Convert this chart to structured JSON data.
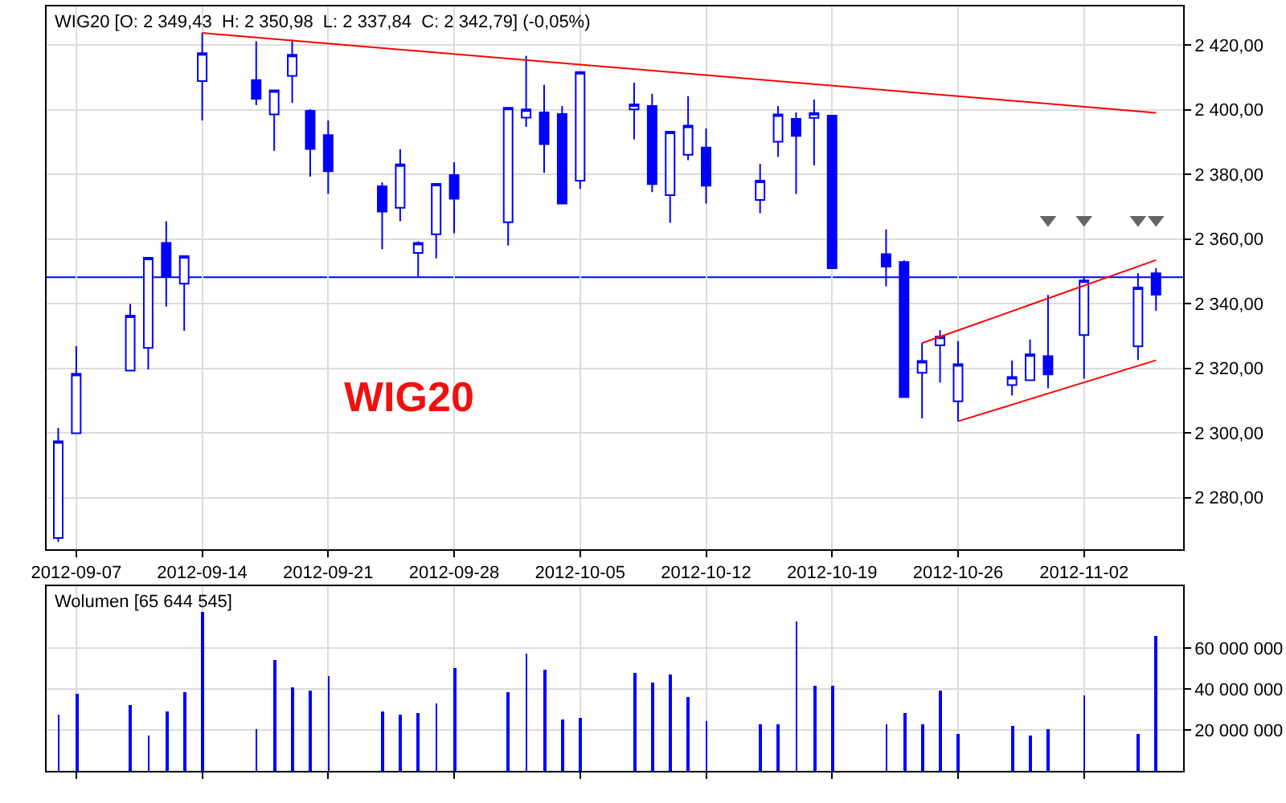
{
  "chart_data": [
    {
      "type": "candlestick",
      "title": "WIG20 [O: 2 349,43  H: 2 350,98  L: 2 337,84  C: 2 342,79] (-0,05%)",
      "color": "#0000ff",
      "x": [
        "2012-09-06",
        "2012-09-07",
        "2012-09-10",
        "2012-09-11",
        "2012-09-12",
        "2012-09-13",
        "2012-09-14",
        "2012-09-17",
        "2012-09-18",
        "2012-09-19",
        "2012-09-20",
        "2012-09-21",
        "2012-09-24",
        "2012-09-25",
        "2012-09-26",
        "2012-09-27",
        "2012-09-28",
        "2012-10-01",
        "2012-10-02",
        "2012-10-03",
        "2012-10-04",
        "2012-10-05",
        "2012-10-08",
        "2012-10-09",
        "2012-10-10",
        "2012-10-11",
        "2012-10-12",
        "2012-10-15",
        "2012-10-16",
        "2012-10-17",
        "2012-10-18",
        "2012-10-19",
        "2012-10-22",
        "2012-10-23",
        "2012-10-24",
        "2012-10-25",
        "2012-10-26",
        "2012-10-29",
        "2012-10-30",
        "2012-10-31",
        "2012-11-02",
        "2012-11-05",
        "2012-11-06"
      ],
      "ohlc": [
        [
          2267.5,
          2301.5,
          2266.3,
          2297.4
        ],
        [
          2299.9,
          2326.9,
          2299.9,
          2318.3
        ],
        [
          2319.3,
          2339.9,
          2319.3,
          2336.3
        ],
        [
          2326.3,
          2354.2,
          2319.6,
          2354.2
        ],
        [
          2358.8,
          2365.5,
          2339.1,
          2348.4
        ],
        [
          2346.2,
          2354.7,
          2331.6,
          2354.7
        ],
        [
          2408.9,
          2423.8,
          2396.7,
          2417.5
        ],
        [
          2409.2,
          2421.2,
          2401.4,
          2403.4
        ],
        [
          2398.6,
          2406.0,
          2387.3,
          2406.0
        ],
        [
          2410.5,
          2421.7,
          2402.1,
          2417.0
        ],
        [
          2399.7,
          2400.2,
          2379.3,
          2387.9
        ],
        [
          2392.2,
          2396.7,
          2374.0,
          2381.0
        ],
        [
          2376.3,
          2377.6,
          2356.9,
          2368.5
        ],
        [
          2369.7,
          2387.8,
          2365.5,
          2383.1
        ],
        [
          2355.7,
          2359.3,
          2348.4,
          2358.8
        ],
        [
          2361.5,
          2377.1,
          2354.0,
          2377.1
        ],
        [
          2379.8,
          2383.8,
          2361.8,
          2372.5
        ],
        [
          2365.2,
          2400.6,
          2358.0,
          2400.6
        ],
        [
          2397.6,
          2416.7,
          2394.7,
          2400.1
        ],
        [
          2399.2,
          2407.7,
          2380.5,
          2389.4
        ],
        [
          2398.7,
          2401.2,
          2371.0,
          2371.0
        ],
        [
          2378.1,
          2411.7,
          2375.5,
          2411.7
        ],
        [
          2400.1,
          2408.4,
          2390.9,
          2401.7
        ],
        [
          2401.2,
          2405.0,
          2374.5,
          2377.0
        ],
        [
          2373.6,
          2393.2,
          2365.0,
          2393.2
        ],
        [
          2386.1,
          2404.2,
          2384.4,
          2395.1
        ],
        [
          2388.3,
          2394.2,
          2371.0,
          2376.5
        ],
        [
          2372.1,
          2383.3,
          2368.0,
          2378.1
        ],
        [
          2390.1,
          2401.2,
          2385.4,
          2398.6
        ],
        [
          2397.2,
          2399.2,
          2374.0,
          2391.9
        ],
        [
          2397.5,
          2403.2,
          2382.8,
          2399.0
        ],
        [
          2398.2,
          2398.2,
          2351.0,
          2351.0
        ],
        [
          2355.3,
          2363.0,
          2345.4,
          2351.5
        ],
        [
          2352.9,
          2353.4,
          2311.1,
          2311.1
        ],
        [
          2318.6,
          2327.8,
          2304.5,
          2322.3
        ],
        [
          2327.1,
          2331.8,
          2315.6,
          2329.8
        ],
        [
          2309.8,
          2328.4,
          2303.6,
          2321.3
        ],
        [
          2314.8,
          2322.4,
          2311.6,
          2317.3
        ],
        [
          2316.3,
          2328.9,
          2316.3,
          2324.3
        ],
        [
          2323.8,
          2342.7,
          2313.8,
          2318.1
        ],
        [
          2330.3,
          2348.5,
          2316.8,
          2347.2
        ],
        [
          2326.8,
          2349.4,
          2322.6,
          2345.0
        ],
        [
          2349.43,
          2350.98,
          2337.84,
          2342.79
        ]
      ],
      "series": [
        {
          "type": "line",
          "color": "#ff0000",
          "x": [
            "2012-09-14",
            "2012-11-06"
          ],
          "values": [
            2423.8,
            2399.1
          ]
        },
        {
          "type": "line",
          "color": "#ff0000",
          "x": [
            "2012-10-24",
            "2012-11-06"
          ],
          "values": [
            2327.8,
            2353.5
          ]
        },
        {
          "type": "line",
          "color": "#ff0000",
          "x": [
            "2012-10-26",
            "2012-11-06"
          ],
          "values": [
            2303.6,
            2322.5
          ]
        },
        {
          "type": "scatter",
          "color": "#666666",
          "marker": "triangle",
          "x": [
            "2012-10-31",
            "2012-11-02",
            "2012-11-05",
            "2012-11-06"
          ],
          "values": [
            2366,
            2366,
            2366,
            2366
          ]
        }
      ],
      "ref_lines": [
        {
          "axis": "y",
          "value": 2348.2,
          "color": "#0000ff"
        }
      ],
      "annotations": [
        "WIG20"
      ],
      "xlim": [
        "2012-09-05T08:00",
        "2012-11-07T12:00"
      ],
      "xticks": [
        "2012-09-07",
        "2012-09-14",
        "2012-09-21",
        "2012-09-28",
        "2012-10-05",
        "2012-10-12",
        "2012-10-19",
        "2012-10-26",
        "2012-11-02"
      ],
      "ylim": [
        2264,
        2432
      ],
      "yticks": [
        {
          "value": 2280,
          "label": "2 280,00"
        },
        {
          "value": 2300,
          "label": "2 300,00"
        },
        {
          "value": 2320,
          "label": "2 320,00"
        },
        {
          "value": 2340,
          "label": "2 340,00"
        },
        {
          "value": 2360,
          "label": "2 360,00"
        },
        {
          "value": 2380,
          "label": "2 380,00"
        },
        {
          "value": 2400,
          "label": "2 400,00"
        },
        {
          "value": 2420,
          "label": "2 420,00"
        }
      ],
      "grid": true
    },
    {
      "type": "bar",
      "title": "Wolumen [65 644 545]",
      "color": "#0000ff",
      "tick_labels": "y",
      "x": [
        "2012-09-06",
        "2012-09-07",
        "2012-09-10",
        "2012-09-11",
        "2012-09-12",
        "2012-09-13",
        "2012-09-14",
        "2012-09-17",
        "2012-09-18",
        "2012-09-19",
        "2012-09-20",
        "2012-09-21",
        "2012-09-24",
        "2012-09-25",
        "2012-09-26",
        "2012-09-27",
        "2012-09-28",
        "2012-10-01",
        "2012-10-02",
        "2012-10-03",
        "2012-10-04",
        "2012-10-05",
        "2012-10-08",
        "2012-10-09",
        "2012-10-10",
        "2012-10-11",
        "2012-10-12",
        "2012-10-15",
        "2012-10-16",
        "2012-10-17",
        "2012-10-18",
        "2012-10-19",
        "2012-10-22",
        "2012-10-23",
        "2012-10-24",
        "2012-10-25",
        "2012-10-26",
        "2012-10-29",
        "2012-10-30",
        "2012-10-31",
        "2012-11-02",
        "2012-11-05",
        "2012-11-06"
      ],
      "values": [
        27800000,
        38000000,
        32500000,
        17600000,
        29400000,
        38800000,
        78000000,
        20800000,
        54500000,
        41200000,
        39600000,
        46600000,
        29400000,
        27800000,
        28600000,
        33300000,
        50600000,
        38800000,
        57600000,
        49800000,
        25500000,
        26300000,
        48200000,
        43500000,
        47400000,
        36500000,
        24700000,
        23100000,
        23100000,
        73300000,
        41900000,
        41900000,
        23100000,
        28600000,
        23100000,
        39600000,
        18400000,
        22300000,
        17600000,
        20800000,
        37200000,
        18400000,
        65600000
      ],
      "xlim": [
        "2012-09-05T08:00",
        "2012-11-07T12:00"
      ],
      "xticks": [
        "2012-09-07",
        "2012-09-14",
        "2012-09-21",
        "2012-09-28",
        "2012-10-05",
        "2012-10-12",
        "2012-10-19",
        "2012-10-26",
        "2012-11-02"
      ],
      "ylim": [
        0,
        90300000
      ],
      "yticks": [
        {
          "value": 20000000,
          "label": "20 000 000"
        },
        {
          "value": 40000000,
          "label": "40 000 000"
        },
        {
          "value": 60000000,
          "label": "60 000 000"
        }
      ],
      "grid": true
    }
  ]
}
